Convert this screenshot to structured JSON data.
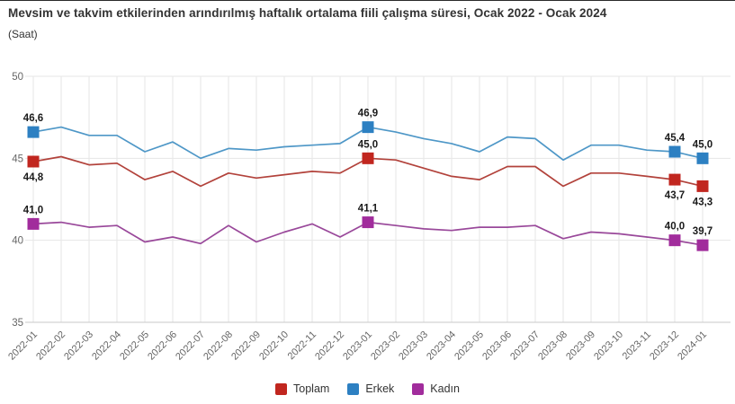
{
  "header": {
    "title": "Mevsim ve takvim etkilerinden arındırılmış haftalık ortalama fiili çalışma süresi, Ocak 2022 - Ocak 2024",
    "subtitle": "(Saat)"
  },
  "chart_data": {
    "type": "line",
    "title": "Mevsim ve takvim etkilerinden arındırılmış haftalık ortalama fiili çalışma süresi, Ocak 2022 - Ocak 2024",
    "subtitle": "(Saat)",
    "xlabel": "",
    "ylabel": "",
    "ylim": [
      35,
      50
    ],
    "yticks": [
      35,
      40,
      45,
      50
    ],
    "grid": true,
    "legend_position": "bottom-center",
    "categories": [
      "2022-01",
      "2022-02",
      "2022-03",
      "2022-04",
      "2022-05",
      "2022-06",
      "2022-07",
      "2022-08",
      "2022-09",
      "2022-10",
      "2022-11",
      "2022-12",
      "2023-01",
      "2023-02",
      "2023-03",
      "2023-04",
      "2023-05",
      "2023-06",
      "2023-07",
      "2023-08",
      "2023-09",
      "2023-10",
      "2023-11",
      "2023-12",
      "2024-01"
    ],
    "series": [
      {
        "name": "Toplam",
        "marker_color": "#c1261f",
        "line_color": "#b2423b",
        "values": [
          44.8,
          45.1,
          44.6,
          44.7,
          43.7,
          44.2,
          43.3,
          44.1,
          43.8,
          44.0,
          44.2,
          44.1,
          45.0,
          44.9,
          44.4,
          43.9,
          43.7,
          44.5,
          44.5,
          43.3,
          44.1,
          44.1,
          43.9,
          43.7,
          43.3
        ],
        "labels": [
          {
            "i": 0,
            "text": "44,8",
            "pos": "below"
          },
          {
            "i": 12,
            "text": "45,0",
            "pos": "above"
          },
          {
            "i": 23,
            "text": "43,7",
            "pos": "below"
          },
          {
            "i": 24,
            "text": "43,3",
            "pos": "below"
          }
        ]
      },
      {
        "name": "Erkek",
        "marker_color": "#2d80c2",
        "line_color": "#4e97c7",
        "values": [
          46.6,
          46.9,
          46.4,
          46.4,
          45.4,
          46.0,
          45.0,
          45.6,
          45.5,
          45.7,
          45.8,
          45.9,
          46.9,
          46.6,
          46.2,
          45.9,
          45.4,
          46.3,
          46.2,
          44.9,
          45.8,
          45.8,
          45.5,
          45.4,
          45.0
        ],
        "labels": [
          {
            "i": 0,
            "text": "46,6",
            "pos": "above"
          },
          {
            "i": 12,
            "text": "46,9",
            "pos": "above"
          },
          {
            "i": 23,
            "text": "45,4",
            "pos": "above"
          },
          {
            "i": 24,
            "text": "45,0",
            "pos": "above"
          }
        ]
      },
      {
        "name": "Kadın",
        "marker_color": "#a12c9c",
        "line_color": "#99489a",
        "values": [
          41.0,
          41.1,
          40.8,
          40.9,
          39.9,
          40.2,
          39.8,
          40.9,
          39.9,
          40.5,
          41.0,
          40.2,
          41.1,
          40.9,
          40.7,
          40.6,
          40.8,
          40.8,
          40.9,
          40.1,
          40.5,
          40.4,
          40.2,
          40.0,
          39.7
        ],
        "labels": [
          {
            "i": 0,
            "text": "41,0",
            "pos": "above"
          },
          {
            "i": 12,
            "text": "41,1",
            "pos": "above"
          },
          {
            "i": 23,
            "text": "40,0",
            "pos": "above"
          },
          {
            "i": 24,
            "text": "39,7",
            "pos": "above"
          }
        ]
      }
    ]
  },
  "colors": {
    "grid": "#e6e6e6",
    "axis_line": "#c9c9c9",
    "axis_text": "#666666",
    "data_label_text": "#1a1a1a"
  }
}
